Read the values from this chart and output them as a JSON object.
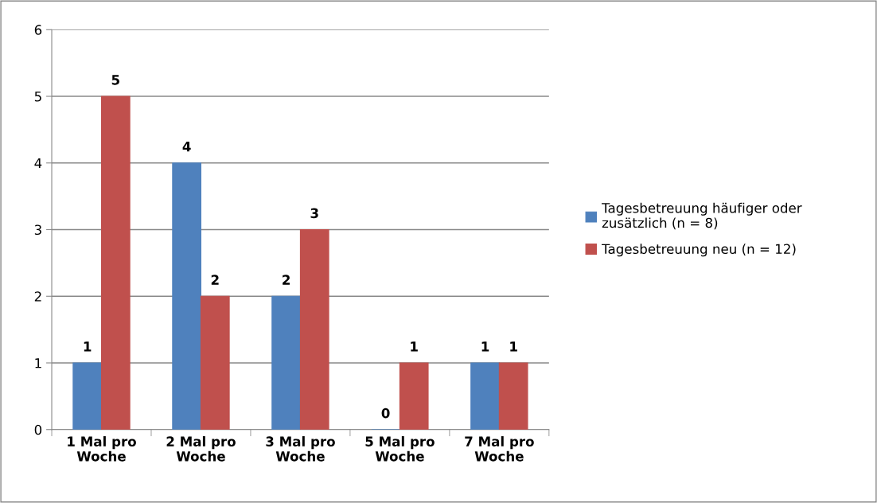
{
  "chart_data": {
    "type": "bar",
    "categories": [
      "1 Mal pro Woche",
      "2 Mal pro Woche",
      "3 Mal pro Woche",
      "5 Mal pro Woche",
      "7 Mal pro Woche"
    ],
    "series": [
      {
        "name": "Tagesbetreuung häufiger oder zusätzlich (n = 8)",
        "color": "#4f81bd",
        "values": [
          1,
          4,
          2,
          0,
          1
        ]
      },
      {
        "name": "Tagesbetreuung neu (n = 12)",
        "color": "#c0504d",
        "values": [
          5,
          2,
          3,
          1,
          1
        ]
      }
    ],
    "ylim": [
      0,
      6
    ],
    "yticks": [
      0,
      1,
      2,
      3,
      4,
      5,
      6
    ],
    "grid": "y",
    "legend": "right",
    "data_labels": true
  }
}
